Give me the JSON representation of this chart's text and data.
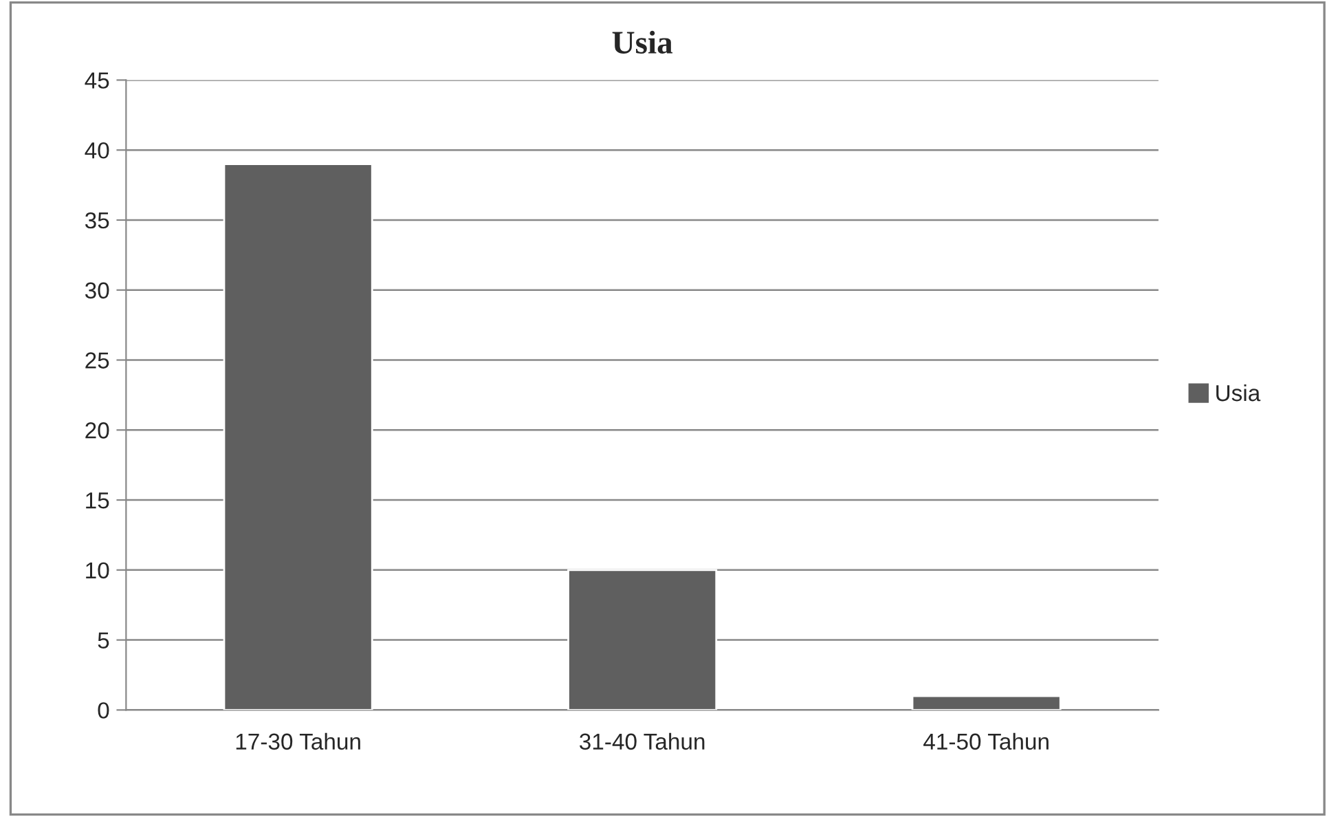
{
  "chart_data": {
    "type": "bar",
    "title": "Usia",
    "categories": [
      "17-30 Tahun",
      "31-40 Tahun",
      "41-50 Tahun"
    ],
    "series": [
      {
        "name": "Usia",
        "color": "#5f5f5f",
        "values": [
          39,
          10,
          1
        ]
      }
    ],
    "ylim": [
      0,
      45
    ],
    "yticks": [
      0,
      5,
      10,
      15,
      20,
      25,
      30,
      35,
      40,
      45
    ],
    "grid": "y",
    "legend": "right"
  }
}
